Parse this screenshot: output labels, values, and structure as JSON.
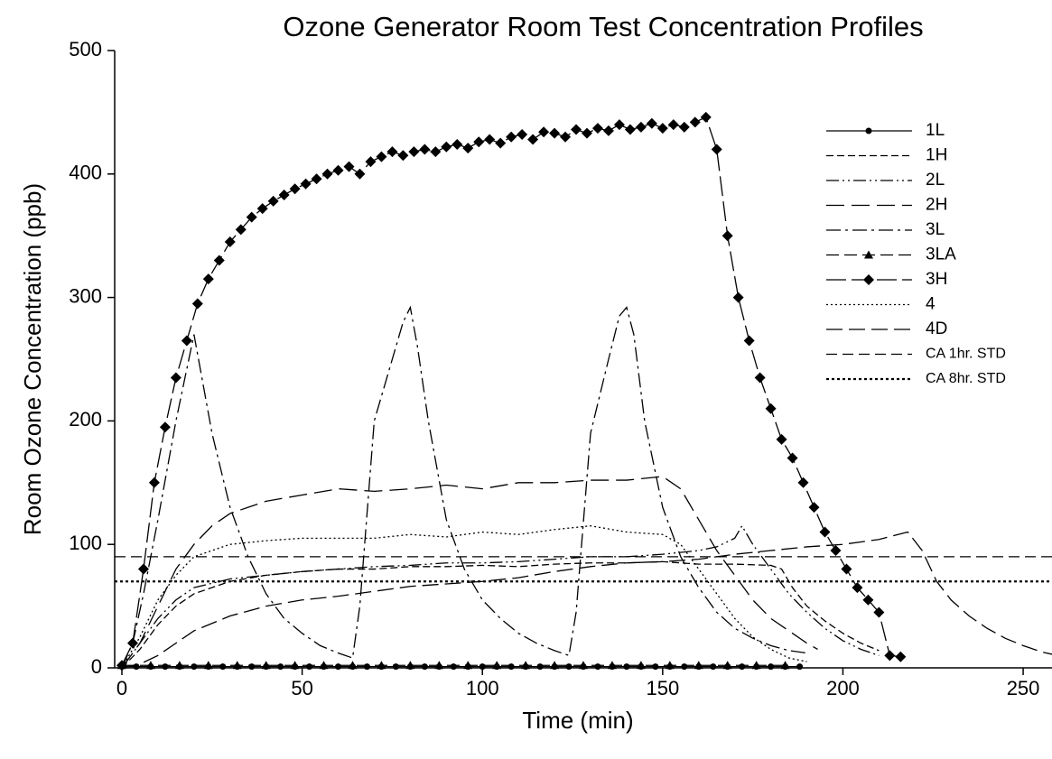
{
  "chart_data": {
    "type": "line",
    "title": "Ozone Generator Room Test Concentration Profiles",
    "x_label": "Time (min)",
    "y_label": "Room Ozone Concentration (ppb)",
    "xlim": [
      -2,
      258
    ],
    "ylim": [
      0,
      500
    ],
    "xticks": [
      0,
      50,
      100,
      150,
      200,
      250
    ],
    "yticks": [
      0,
      100,
      200,
      300,
      400,
      500
    ],
    "legend": "upper right",
    "series": [
      {
        "name": "1L",
        "color": "#000000",
        "dash": "none",
        "marker": "circle",
        "x": [
          0,
          4,
          8,
          12,
          16,
          20,
          24,
          28,
          32,
          36,
          40,
          44,
          48,
          52,
          56,
          60,
          64,
          68,
          72,
          76,
          80,
          84,
          88,
          92,
          96,
          100,
          104,
          108,
          112,
          116,
          120,
          124,
          128,
          132,
          136,
          140,
          144,
          148,
          152,
          156,
          160,
          164,
          168,
          172,
          176,
          180,
          184,
          188
        ],
        "values": [
          1,
          1,
          1,
          1,
          1,
          1,
          1,
          1,
          1,
          1,
          1,
          1,
          1,
          1,
          1,
          1,
          1,
          1,
          1,
          1,
          1,
          1,
          1,
          1,
          1,
          1,
          1,
          1,
          1,
          1,
          1,
          1,
          1,
          1,
          1,
          1,
          1,
          1,
          1,
          1,
          1,
          1,
          1,
          1,
          1,
          1,
          1,
          1
        ]
      },
      {
        "name": "1H",
        "color": "#000000",
        "dash": "8,4",
        "marker": "none",
        "x": [
          0,
          5,
          10,
          15,
          20,
          30,
          40,
          50,
          60,
          70,
          80,
          90,
          100,
          110,
          120,
          130,
          140,
          150,
          160,
          170,
          180,
          183,
          186,
          190,
          195,
          200,
          205,
          210
        ],
        "values": [
          0,
          15,
          35,
          50,
          60,
          70,
          75,
          78,
          80,
          80,
          82,
          82,
          83,
          82,
          84,
          85,
          85,
          86,
          84,
          84,
          83,
          80,
          65,
          50,
          38,
          28,
          20,
          14
        ]
      },
      {
        "name": "2L",
        "color": "#000000",
        "dash": "14,4,2,4,2,4",
        "marker": "none",
        "x": [
          0,
          5,
          10,
          15,
          20,
          30,
          40,
          50,
          60,
          70,
          80,
          90,
          100,
          110,
          120,
          130,
          140,
          150,
          160,
          165,
          170,
          172,
          175,
          180,
          185,
          190,
          195,
          200,
          205,
          210
        ],
        "values": [
          0,
          20,
          40,
          55,
          65,
          72,
          75,
          78,
          80,
          82,
          83,
          85,
          85,
          86,
          88,
          90,
          90,
          92,
          95,
          98,
          105,
          115,
          100,
          80,
          60,
          45,
          32,
          22,
          15,
          10
        ]
      },
      {
        "name": "2H",
        "color": "#000000",
        "dash": "20,8",
        "marker": "none",
        "x": [
          0,
          5,
          10,
          15,
          20,
          25,
          30,
          35,
          40,
          50,
          60,
          70,
          80,
          90,
          100,
          110,
          120,
          130,
          140,
          150,
          155,
          160,
          165,
          170,
          175,
          180,
          185,
          190,
          193
        ],
        "values": [
          0,
          20,
          50,
          80,
          100,
          115,
          125,
          130,
          135,
          140,
          145,
          143,
          145,
          148,
          145,
          150,
          150,
          152,
          152,
          155,
          145,
          120,
          95,
          75,
          55,
          40,
          30,
          20,
          15
        ]
      },
      {
        "name": "3L",
        "color": "#000000",
        "dash": "16,5,3,5",
        "marker": "none",
        "x": [
          0,
          3,
          6,
          10,
          15,
          20,
          25,
          30,
          35,
          40,
          45,
          50,
          55,
          60,
          64,
          66,
          70,
          75,
          78,
          80,
          82,
          85,
          90,
          95,
          100,
          105,
          110,
          115,
          120,
          124,
          126,
          130,
          135,
          138,
          140,
          142,
          145,
          150,
          155,
          160,
          165,
          170,
          175,
          180,
          185,
          190
        ],
        "values": [
          0,
          20,
          60,
          120,
          200,
          270,
          190,
          130,
          90,
          60,
          40,
          28,
          18,
          12,
          8,
          50,
          200,
          250,
          280,
          292,
          260,
          200,
          120,
          80,
          55,
          40,
          28,
          20,
          14,
          10,
          45,
          190,
          250,
          285,
          292,
          270,
          200,
          130,
          90,
          65,
          45,
          32,
          24,
          18,
          14,
          12
        ]
      },
      {
        "name": "3LA",
        "color": "#000000",
        "dash": "14,6",
        "marker": "triangle",
        "x": [
          0,
          8,
          16,
          24,
          32,
          40,
          48,
          56,
          64,
          72,
          80,
          88,
          96,
          104,
          112,
          120,
          128,
          136,
          144,
          152,
          160,
          168,
          176,
          184
        ],
        "values": [
          2,
          2,
          2,
          2,
          2,
          2,
          2,
          2,
          2,
          2,
          2,
          2,
          2,
          2,
          2,
          2,
          2,
          2,
          2,
          2,
          2,
          2,
          2,
          2
        ]
      },
      {
        "name": "3H",
        "color": "#000000",
        "dash": "22,6",
        "marker": "diamond",
        "x": [
          0,
          3,
          6,
          9,
          12,
          15,
          18,
          21,
          24,
          27,
          30,
          33,
          36,
          39,
          42,
          45,
          48,
          51,
          54,
          57,
          60,
          63,
          66,
          69,
          72,
          75,
          78,
          81,
          84,
          87,
          90,
          93,
          96,
          99,
          102,
          105,
          108,
          111,
          114,
          117,
          120,
          123,
          126,
          129,
          132,
          135,
          138,
          141,
          144,
          147,
          150,
          153,
          156,
          159,
          162,
          165,
          168,
          171,
          174,
          177,
          180,
          183,
          186,
          189,
          192,
          195,
          198,
          201,
          204,
          207,
          210,
          213,
          216
        ],
        "values": [
          2,
          20,
          80,
          150,
          195,
          235,
          265,
          295,
          315,
          330,
          345,
          355,
          365,
          372,
          378,
          383,
          388,
          392,
          396,
          400,
          403,
          406,
          400,
          410,
          414,
          418,
          415,
          418,
          420,
          418,
          422,
          424,
          421,
          426,
          428,
          425,
          430,
          432,
          428,
          434,
          433,
          430,
          436,
          433,
          437,
          435,
          440,
          436,
          438,
          441,
          437,
          440,
          438,
          442,
          446,
          420,
          350,
          300,
          265,
          235,
          210,
          185,
          170,
          150,
          130,
          110,
          95,
          80,
          65,
          55,
          45,
          10,
          9
        ]
      },
      {
        "name": "4",
        "color": "#000000",
        "dash": "2,3",
        "marker": "none",
        "x": [
          0,
          5,
          10,
          15,
          20,
          25,
          30,
          40,
          50,
          60,
          70,
          80,
          90,
          100,
          110,
          120,
          130,
          140,
          150,
          155,
          160,
          165,
          170,
          175,
          180,
          185,
          190
        ],
        "values": [
          0,
          25,
          55,
          75,
          90,
          95,
          100,
          103,
          105,
          105,
          105,
          108,
          106,
          110,
          108,
          112,
          115,
          110,
          108,
          100,
          80,
          60,
          40,
          25,
          15,
          8,
          5
        ]
      },
      {
        "name": "4D",
        "color": "#000000",
        "dash": "18,7",
        "marker": "none",
        "x": [
          0,
          5,
          10,
          15,
          20,
          30,
          40,
          50,
          60,
          70,
          80,
          90,
          100,
          110,
          120,
          130,
          140,
          150,
          160,
          170,
          180,
          190,
          200,
          210,
          218,
          222,
          226,
          230,
          235,
          240,
          245,
          250,
          255,
          258
        ],
        "values": [
          0,
          3,
          10,
          20,
          30,
          42,
          50,
          55,
          58,
          62,
          66,
          68,
          70,
          73,
          78,
          82,
          85,
          86,
          88,
          92,
          95,
          98,
          100,
          104,
          110,
          95,
          70,
          55,
          42,
          32,
          24,
          18,
          13,
          11
        ]
      },
      {
        "name": "CA 1hr. STD",
        "color": "#000000",
        "dash": "12,6",
        "marker": "none",
        "x": [
          -2,
          258
        ],
        "values": [
          90,
          90
        ]
      },
      {
        "name": "CA 8hr. STD",
        "color": "#000000",
        "dash": "3,3",
        "marker": "none",
        "x": [
          -2,
          258
        ],
        "values": [
          70,
          70
        ]
      }
    ]
  }
}
